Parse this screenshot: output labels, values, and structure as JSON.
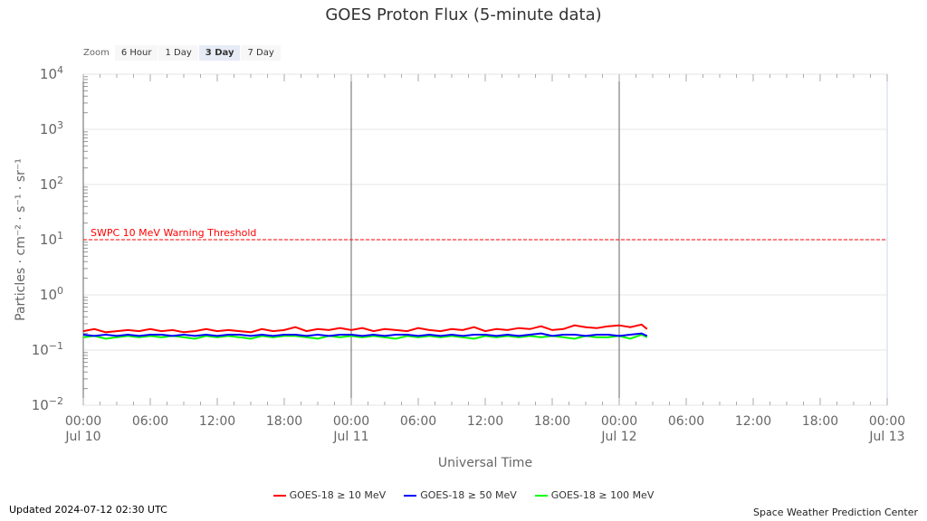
{
  "chart_data": {
    "type": "line",
    "title": "GOES Proton Flux (5-minute data)",
    "xlabel": "Universal Time",
    "ylabel": "Particles · cm⁻² · s⁻¹ · sr⁻¹",
    "yscale": "log",
    "ylim": [
      0.01,
      10000
    ],
    "xlim_hours": [
      0,
      72
    ],
    "yticks": [
      {
        "base": "10",
        "exp": "4"
      },
      {
        "base": "10",
        "exp": "3"
      },
      {
        "base": "10",
        "exp": "2"
      },
      {
        "base": "10",
        "exp": "1"
      },
      {
        "base": "10",
        "exp": "0"
      },
      {
        "base": "10",
        "exp": "−1"
      },
      {
        "base": "10",
        "exp": "−2"
      }
    ],
    "xticks": [
      {
        "h": 0,
        "t": "00:00",
        "d": "Jul 10"
      },
      {
        "h": 6,
        "t": "06:00",
        "d": ""
      },
      {
        "h": 12,
        "t": "12:00",
        "d": ""
      },
      {
        "h": 18,
        "t": "18:00",
        "d": ""
      },
      {
        "h": 24,
        "t": "00:00",
        "d": "Jul 11"
      },
      {
        "h": 30,
        "t": "06:00",
        "d": ""
      },
      {
        "h": 36,
        "t": "12:00",
        "d": ""
      },
      {
        "h": 42,
        "t": "18:00",
        "d": ""
      },
      {
        "h": 48,
        "t": "00:00",
        "d": "Jul 12"
      },
      {
        "h": 54,
        "t": "06:00",
        "d": ""
      },
      {
        "h": 60,
        "t": "12:00",
        "d": ""
      },
      {
        "h": 66,
        "t": "18:00",
        "d": ""
      },
      {
        "h": 72,
        "t": "00:00",
        "d": "Jul 13"
      }
    ],
    "threshold": {
      "value": 10,
      "label": "SWPC 10 MeV Warning Threshold",
      "color": "#ff0000"
    },
    "x_hours": [
      0,
      1,
      2,
      3,
      4,
      5,
      6,
      7,
      8,
      9,
      10,
      11,
      12,
      13,
      14,
      15,
      16,
      17,
      18,
      19,
      20,
      21,
      22,
      23,
      24,
      25,
      26,
      27,
      28,
      29,
      30,
      31,
      32,
      33,
      34,
      35,
      36,
      37,
      38,
      39,
      40,
      41,
      42,
      43,
      44,
      45,
      46,
      47,
      48,
      49,
      50,
      50.5
    ],
    "series": [
      {
        "name": "GOES-18 ≥ 10 MeV",
        "color": "#ff0000",
        "values": [
          0.22,
          0.24,
          0.21,
          0.22,
          0.23,
          0.22,
          0.24,
          0.22,
          0.23,
          0.21,
          0.22,
          0.24,
          0.22,
          0.23,
          0.22,
          0.21,
          0.24,
          0.22,
          0.23,
          0.26,
          0.22,
          0.24,
          0.23,
          0.25,
          0.23,
          0.25,
          0.22,
          0.24,
          0.23,
          0.22,
          0.25,
          0.23,
          0.22,
          0.24,
          0.23,
          0.26,
          0.22,
          0.24,
          0.23,
          0.25,
          0.24,
          0.27,
          0.23,
          0.24,
          0.28,
          0.26,
          0.25,
          0.27,
          0.28,
          0.26,
          0.29,
          0.24
        ]
      },
      {
        "name": "GOES-18 ≥ 50 MeV",
        "color": "#0000ff",
        "values": [
          0.19,
          0.18,
          0.19,
          0.18,
          0.19,
          0.18,
          0.19,
          0.19,
          0.18,
          0.19,
          0.18,
          0.19,
          0.18,
          0.19,
          0.19,
          0.18,
          0.19,
          0.18,
          0.19,
          0.19,
          0.18,
          0.19,
          0.18,
          0.19,
          0.19,
          0.18,
          0.19,
          0.18,
          0.19,
          0.19,
          0.18,
          0.19,
          0.18,
          0.19,
          0.18,
          0.19,
          0.19,
          0.18,
          0.19,
          0.18,
          0.19,
          0.2,
          0.18,
          0.19,
          0.19,
          0.18,
          0.19,
          0.19,
          0.18,
          0.19,
          0.2,
          0.18
        ]
      },
      {
        "name": "GOES-18 ≥ 100 MeV",
        "color": "#00ff00",
        "values": [
          0.17,
          0.18,
          0.16,
          0.17,
          0.18,
          0.17,
          0.18,
          0.17,
          0.18,
          0.17,
          0.16,
          0.18,
          0.17,
          0.18,
          0.17,
          0.16,
          0.18,
          0.17,
          0.18,
          0.18,
          0.17,
          0.16,
          0.18,
          0.17,
          0.18,
          0.17,
          0.18,
          0.17,
          0.16,
          0.18,
          0.17,
          0.18,
          0.17,
          0.18,
          0.17,
          0.16,
          0.18,
          0.17,
          0.18,
          0.17,
          0.18,
          0.17,
          0.18,
          0.17,
          0.16,
          0.18,
          0.17,
          0.17,
          0.18,
          0.16,
          0.19,
          0.17
        ]
      }
    ]
  },
  "zoom": {
    "label": "Zoom",
    "buttons": [
      "6 Hour",
      "1 Day",
      "3 Day",
      "7 Day"
    ],
    "active": "3 Day"
  },
  "footer": {
    "updated": "Updated 2024-07-12 02:30 UTC",
    "credit": "Space Weather Prediction Center"
  }
}
